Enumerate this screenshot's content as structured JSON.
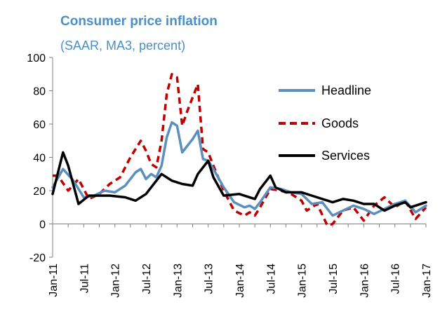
{
  "chart_data": {
    "type": "line",
    "title": "Consumer price inflation",
    "subtitle": "(SAAR, MA3, percent)",
    "xlabel": "",
    "ylabel": "",
    "ylim": [
      -20,
      100
    ],
    "yticks": [
      -20,
      0,
      20,
      40,
      60,
      80,
      100
    ],
    "x_tick_labels": [
      "Jan-11",
      "Jul-11",
      "Jan-12",
      "Jul-12",
      "Jan-13",
      "Jul-13",
      "Jan-14",
      "Jul-14",
      "Jan-15",
      "Jul-15",
      "Jan-16",
      "Jul-16",
      "Jan-17"
    ],
    "legend_position": "upper-right",
    "grid": false,
    "x_start": "Jan-11",
    "x_end": "Jan-17",
    "series": [
      {
        "name": "Headline",
        "color": "#5b8fbd",
        "style": "solid",
        "values": [
          {
            "x": "Jan-11",
            "y": 22
          },
          {
            "x": "Mar-11",
            "y": 33
          },
          {
            "x": "May-11",
            "y": 26
          },
          {
            "x": "Jul-11",
            "y": 16
          },
          {
            "x": "Sep-11",
            "y": 17
          },
          {
            "x": "Nov-11",
            "y": 20
          },
          {
            "x": "Jan-12",
            "y": 19
          },
          {
            "x": "Mar-12",
            "y": 23
          },
          {
            "x": "May-12",
            "y": 31
          },
          {
            "x": "Jun-12",
            "y": 33
          },
          {
            "x": "Jul-12",
            "y": 27
          },
          {
            "x": "Aug-12",
            "y": 30
          },
          {
            "x": "Sep-12",
            "y": 28
          },
          {
            "x": "Oct-12",
            "y": 35
          },
          {
            "x": "Nov-12",
            "y": 52
          },
          {
            "x": "Dec-12",
            "y": 61
          },
          {
            "x": "Jan-13",
            "y": 59
          },
          {
            "x": "Feb-13",
            "y": 43
          },
          {
            "x": "Apr-13",
            "y": 51
          },
          {
            "x": "May-13",
            "y": 56
          },
          {
            "x": "Jun-13",
            "y": 39
          },
          {
            "x": "Jul-13",
            "y": 38
          },
          {
            "x": "Aug-13",
            "y": 33
          },
          {
            "x": "Oct-13",
            "y": 22
          },
          {
            "x": "Dec-13",
            "y": 13
          },
          {
            "x": "Feb-14",
            "y": 10
          },
          {
            "x": "Mar-14",
            "y": 11
          },
          {
            "x": "Apr-14",
            "y": 9
          },
          {
            "x": "May-14",
            "y": 13
          },
          {
            "x": "Jul-14",
            "y": 22
          },
          {
            "x": "Sep-14",
            "y": 21
          },
          {
            "x": "Nov-14",
            "y": 19
          },
          {
            "x": "Jan-15",
            "y": 18
          },
          {
            "x": "Mar-15",
            "y": 12
          },
          {
            "x": "May-15",
            "y": 13
          },
          {
            "x": "Jul-15",
            "y": 5
          },
          {
            "x": "Sep-15",
            "y": 8
          },
          {
            "x": "Nov-15",
            "y": 11
          },
          {
            "x": "Jan-16",
            "y": 9
          },
          {
            "x": "Mar-16",
            "y": 6
          },
          {
            "x": "May-16",
            "y": 9
          },
          {
            "x": "Jul-16",
            "y": 12
          },
          {
            "x": "Sep-16",
            "y": 14
          },
          {
            "x": "Nov-16",
            "y": 7
          },
          {
            "x": "Jan-17",
            "y": 11
          }
        ]
      },
      {
        "name": "Goods",
        "color": "#c00000",
        "style": "dashed",
        "values": [
          {
            "x": "Jan-11",
            "y": 29
          },
          {
            "x": "Feb-11",
            "y": 29
          },
          {
            "x": "Apr-11",
            "y": 20
          },
          {
            "x": "Jun-11",
            "y": 27
          },
          {
            "x": "Aug-11",
            "y": 15
          },
          {
            "x": "Oct-11",
            "y": 18
          },
          {
            "x": "Dec-11",
            "y": 24
          },
          {
            "x": "Feb-12",
            "y": 28
          },
          {
            "x": "Apr-12",
            "y": 40
          },
          {
            "x": "Jun-12",
            "y": 50
          },
          {
            "x": "Jul-12",
            "y": 44
          },
          {
            "x": "Aug-12",
            "y": 36
          },
          {
            "x": "Sep-12",
            "y": 34
          },
          {
            "x": "Oct-12",
            "y": 50
          },
          {
            "x": "Nov-12",
            "y": 78
          },
          {
            "x": "Dec-12",
            "y": 90
          },
          {
            "x": "Jan-13",
            "y": 88
          },
          {
            "x": "Feb-13",
            "y": 59
          },
          {
            "x": "Mar-13",
            "y": 68
          },
          {
            "x": "May-13",
            "y": 84
          },
          {
            "x": "Jun-13",
            "y": 45
          },
          {
            "x": "Jul-13",
            "y": 43
          },
          {
            "x": "Aug-13",
            "y": 35
          },
          {
            "x": "Oct-13",
            "y": 20
          },
          {
            "x": "Dec-13",
            "y": 8
          },
          {
            "x": "Feb-14",
            "y": 5
          },
          {
            "x": "Mar-14",
            "y": 7
          },
          {
            "x": "Apr-14",
            "y": 5
          },
          {
            "x": "May-14",
            "y": 10
          },
          {
            "x": "Jul-14",
            "y": 21
          },
          {
            "x": "Sep-14",
            "y": 20
          },
          {
            "x": "Nov-14",
            "y": 18
          },
          {
            "x": "Jan-15",
            "y": 14
          },
          {
            "x": "Feb-15",
            "y": 8
          },
          {
            "x": "Apr-15",
            "y": 12
          },
          {
            "x": "Jun-15",
            "y": -1
          },
          {
            "x": "Jul-15",
            "y": 0
          },
          {
            "x": "Sep-15",
            "y": 8
          },
          {
            "x": "Nov-15",
            "y": 10
          },
          {
            "x": "Jan-16",
            "y": 2
          },
          {
            "x": "Mar-16",
            "y": 11
          },
          {
            "x": "May-16",
            "y": 16
          },
          {
            "x": "Jul-16",
            "y": 10
          },
          {
            "x": "Sep-16",
            "y": 14
          },
          {
            "x": "Nov-16",
            "y": 3
          },
          {
            "x": "Jan-17",
            "y": 10
          }
        ]
      },
      {
        "name": "Services",
        "color": "#000000",
        "style": "solid",
        "values": [
          {
            "x": "Jan-11",
            "y": 18
          },
          {
            "x": "Mar-11",
            "y": 43
          },
          {
            "x": "Apr-11",
            "y": 35
          },
          {
            "x": "Jun-11",
            "y": 12
          },
          {
            "x": "Aug-11",
            "y": 17
          },
          {
            "x": "Oct-11",
            "y": 17
          },
          {
            "x": "Dec-11",
            "y": 17
          },
          {
            "x": "Mar-12",
            "y": 16
          },
          {
            "x": "May-12",
            "y": 14
          },
          {
            "x": "Jul-12",
            "y": 18
          },
          {
            "x": "Sep-12",
            "y": 26
          },
          {
            "x": "Oct-12",
            "y": 30
          },
          {
            "x": "Dec-12",
            "y": 26
          },
          {
            "x": "Feb-13",
            "y": 24
          },
          {
            "x": "Apr-13",
            "y": 23
          },
          {
            "x": "May-13",
            "y": 30
          },
          {
            "x": "Jul-13",
            "y": 38
          },
          {
            "x": "Aug-13",
            "y": 28
          },
          {
            "x": "Oct-13",
            "y": 17
          },
          {
            "x": "Jan-14",
            "y": 18
          },
          {
            "x": "Apr-14",
            "y": 15
          },
          {
            "x": "May-14",
            "y": 21
          },
          {
            "x": "Jul-14",
            "y": 29
          },
          {
            "x": "Aug-14",
            "y": 22
          },
          {
            "x": "Oct-14",
            "y": 19
          },
          {
            "x": "Jan-15",
            "y": 19
          },
          {
            "x": "Apr-15",
            "y": 16
          },
          {
            "x": "Jul-15",
            "y": 13
          },
          {
            "x": "Sep-15",
            "y": 15
          },
          {
            "x": "Nov-15",
            "y": 14
          },
          {
            "x": "Jan-16",
            "y": 12
          },
          {
            "x": "Mar-16",
            "y": 12
          },
          {
            "x": "May-16",
            "y": 8
          },
          {
            "x": "Jul-16",
            "y": 11
          },
          {
            "x": "Sep-16",
            "y": 13
          },
          {
            "x": "Oct-16",
            "y": 10
          },
          {
            "x": "Jan-17",
            "y": 13
          }
        ]
      }
    ]
  }
}
